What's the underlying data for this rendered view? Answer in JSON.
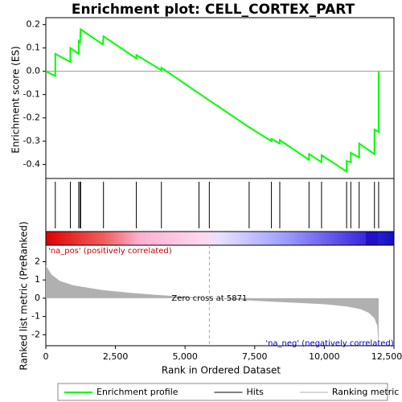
{
  "chart_data": [
    {
      "type": "line",
      "title": "Enrichment plot: CELL_CORTEX_PART",
      "ylabel": "Enrichment score (ES)",
      "xlim": [
        0,
        12500
      ],
      "ylim": [
        -0.46,
        0.23
      ],
      "yticks": [
        0.2,
        0.1,
        {
          "value": 0,
          "label": "0.0"
        },
        -0.1,
        -0.2,
        -0.3,
        -0.4
      ],
      "series": [
        {
          "name": "Enrichment profile",
          "color": "#00ff00",
          "x": [
            0,
            340,
            340,
            880,
            880,
            1180,
            1180,
            1230,
            1250,
            2050,
            2070,
            3250,
            3250,
            4150,
            4150,
            5500,
            5870,
            7300,
            8100,
            8100,
            8400,
            8400,
            9450,
            9450,
            9900,
            9900,
            10800,
            10800,
            10950,
            10950,
            11250,
            11250,
            11800,
            11800,
            11950,
            11950
          ],
          "values": [
            0,
            -0.02,
            0.075,
            0.04,
            0.1,
            0.075,
            0.13,
            0.125,
            0.18,
            0.115,
            0.15,
            0.055,
            0.07,
            0.005,
            0.015,
            -0.095,
            -0.125,
            -0.24,
            -0.3,
            -0.29,
            -0.31,
            -0.295,
            -0.38,
            -0.355,
            -0.39,
            -0.36,
            -0.43,
            -0.385,
            -0.39,
            -0.35,
            -0.37,
            -0.31,
            -0.355,
            -0.25,
            -0.26,
            0
          ]
        }
      ]
    },
    {
      "type": "hits",
      "xlim": [
        0,
        12500
      ],
      "series": [
        {
          "name": "Hits",
          "color": "#000000",
          "x": [
            340,
            880,
            1180,
            1230,
            1250,
            2070,
            3250,
            4150,
            5500,
            5870,
            7300,
            8100,
            8400,
            9450,
            9900,
            10800,
            10950,
            11250,
            11800,
            11950
          ]
        }
      ]
    },
    {
      "type": "area",
      "ylabel": "Ranked list metric (PreRanked)",
      "xlabel": "Rank in Ordered Dataset",
      "xlim": [
        0,
        12500
      ],
      "ylim": [
        -2.6,
        2.9
      ],
      "xticks": [
        0,
        {
          "value": 2500,
          "label": "2,500"
        },
        {
          "value": 5000,
          "label": "5,000"
        },
        {
          "value": 7500,
          "label": "7,500"
        },
        {
          "value": 10000,
          "label": "10,000"
        },
        {
          "value": 12500,
          "label": "12,500"
        }
      ],
      "yticks": [
        2,
        1,
        0,
        -1,
        -2
      ],
      "zero_cross": 5871,
      "zero_cross_label": "Zero cross at 5871",
      "pos_label": "'na_pos' (positively correlated)",
      "neg_label": "'na_neg' (negatively correlated)",
      "series": [
        {
          "name": "Ranking metric scores",
          "color": "#b0b0b0",
          "x": [
            0,
            200,
            500,
            1000,
            2000,
            3000,
            4000,
            5000,
            5871,
            7000,
            8000,
            9000,
            10000,
            10800,
            11300,
            11600,
            11800,
            11900,
            11950
          ],
          "values": [
            1.8,
            1.3,
            0.95,
            0.7,
            0.45,
            0.3,
            0.18,
            0.08,
            0,
            -0.1,
            -0.18,
            -0.25,
            -0.33,
            -0.45,
            -0.6,
            -0.8,
            -1.1,
            -1.5,
            -2.6
          ]
        }
      ]
    }
  ]
}
